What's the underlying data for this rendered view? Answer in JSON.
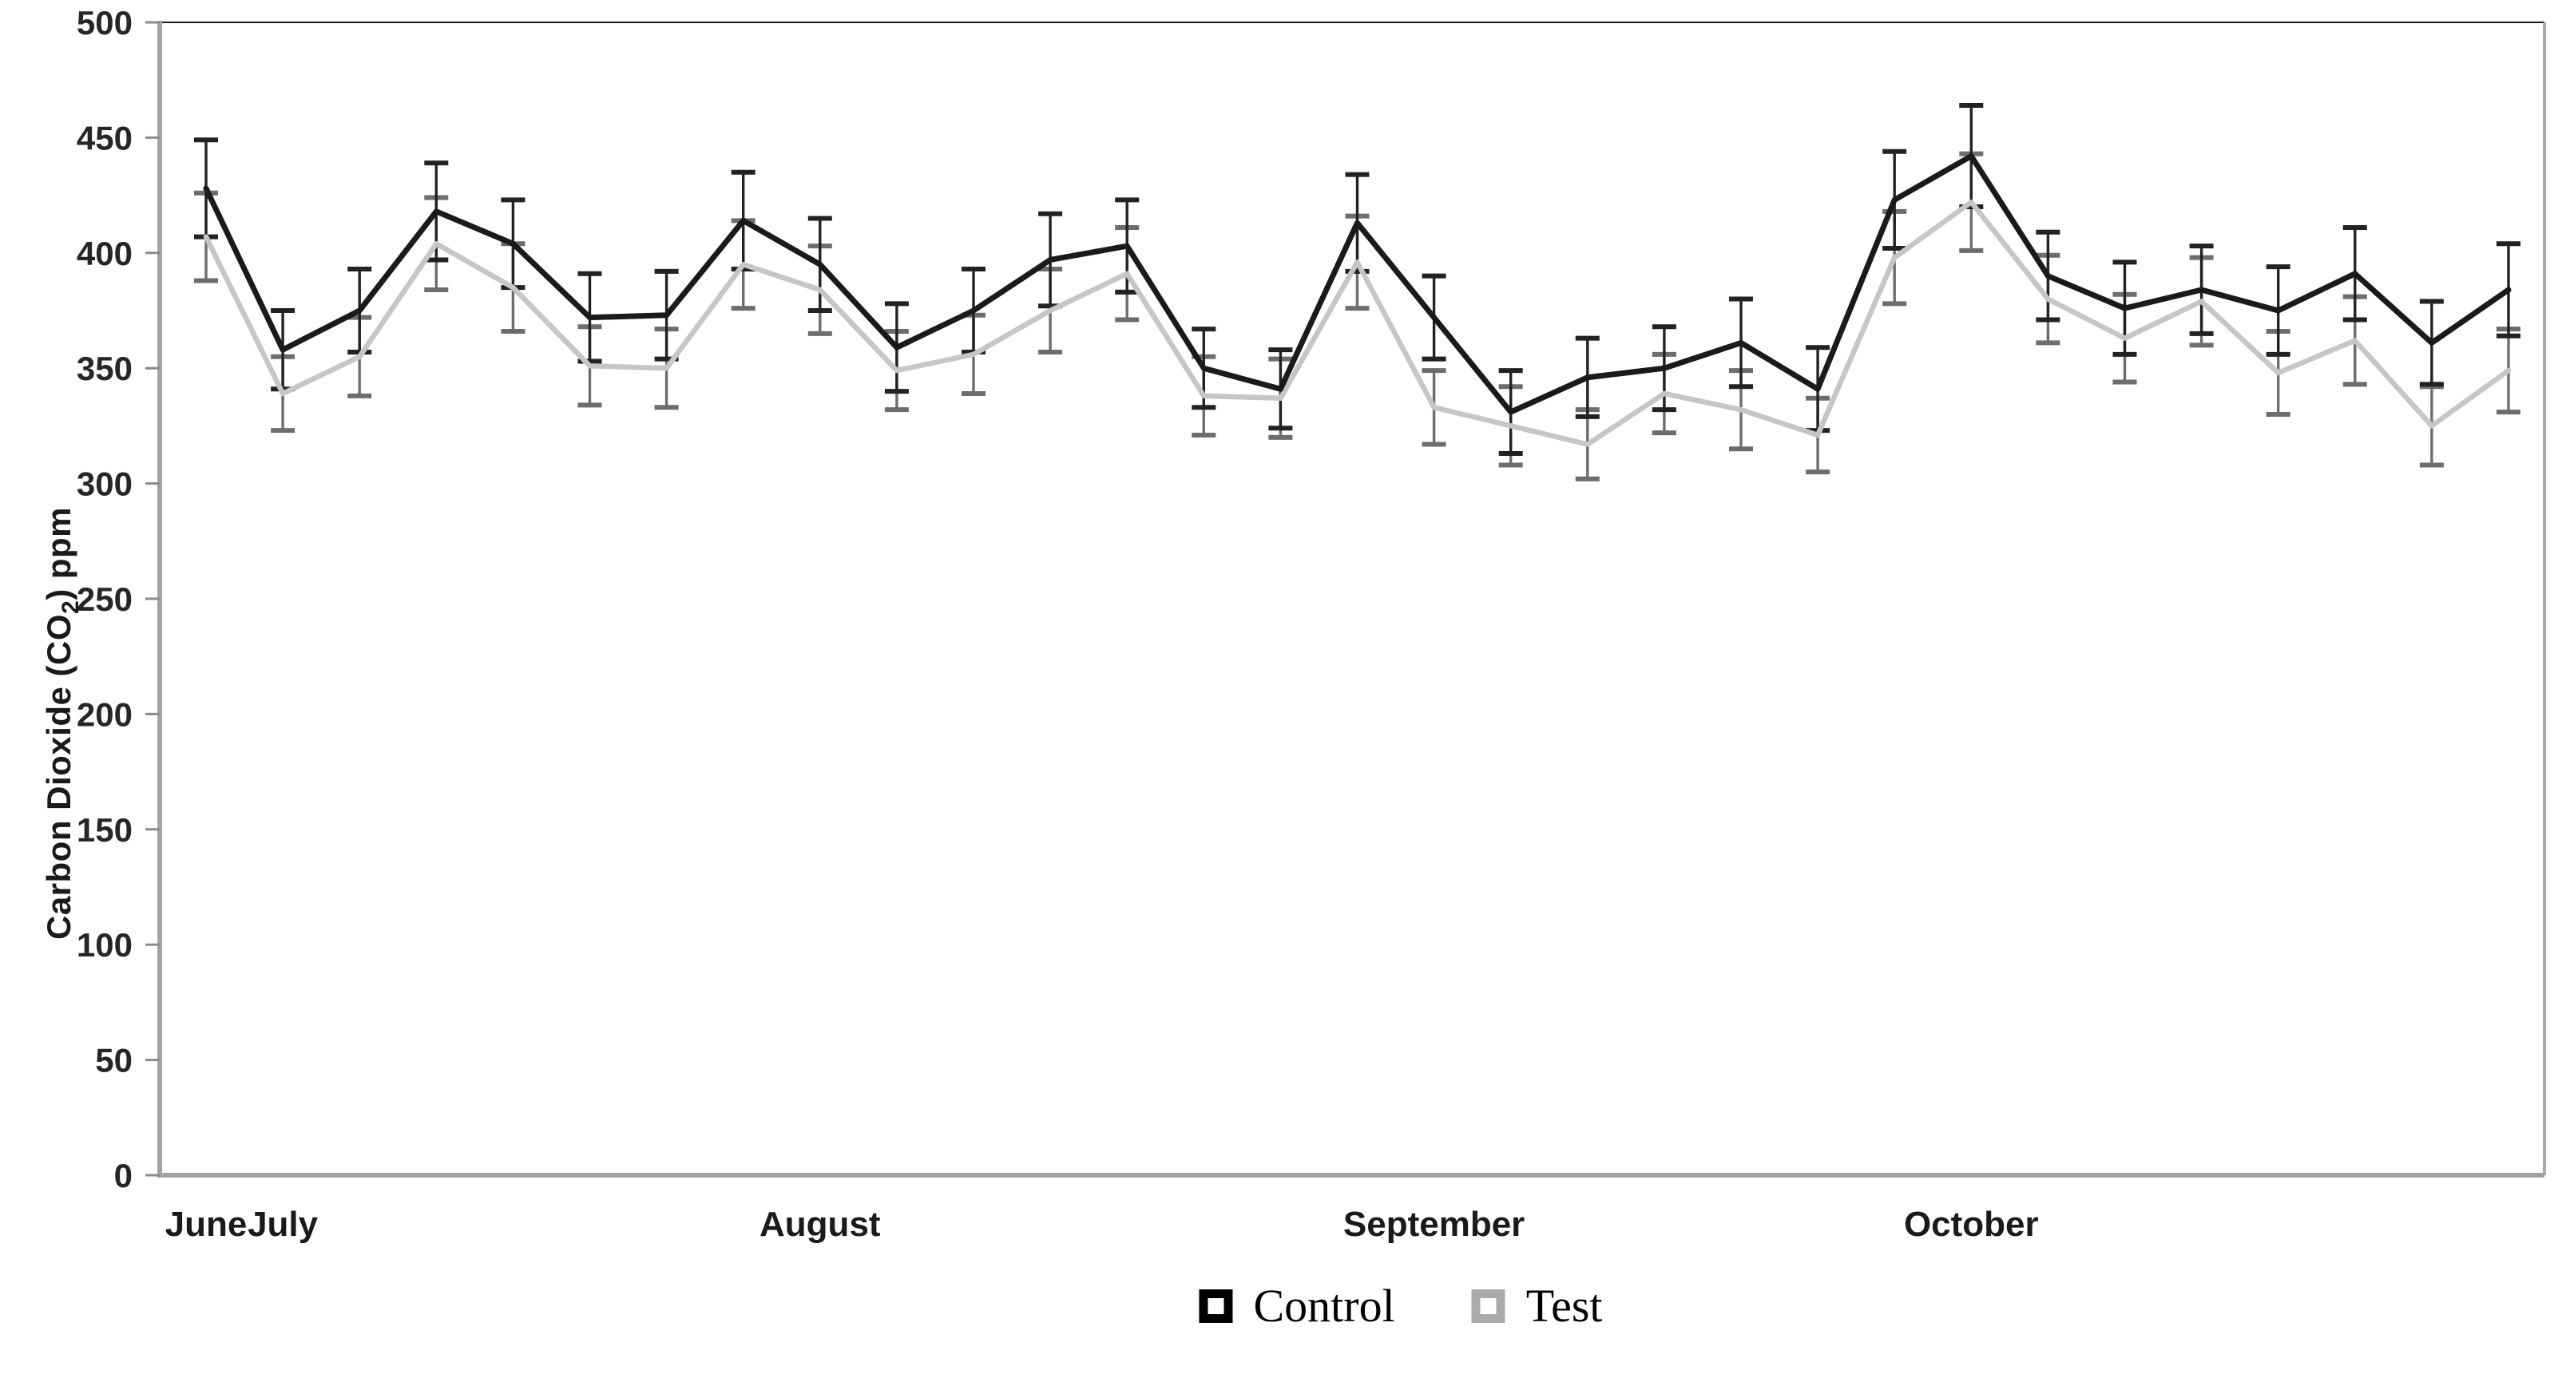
{
  "figure": {
    "background": "#ffffff",
    "ylabel_parts": {
      "pre": "Carbon Dioxide (CO",
      "sub": "2",
      "post": ") ppm"
    }
  },
  "chart_data": {
    "type": "line",
    "title": "",
    "xlabel": "",
    "ylabel": "Carbon Dioxide (CO2) ppm",
    "ylim": [
      0,
      500
    ],
    "yticks": [
      0,
      50,
      100,
      150,
      200,
      250,
      300,
      350,
      400,
      450,
      500
    ],
    "grid": "off",
    "legend_position": "bottom-center",
    "error_bars": true,
    "n_points": 31,
    "x_months": [
      {
        "label": "June",
        "point_index": 0
      },
      {
        "label": "July",
        "point_index": 1
      },
      {
        "label": "August",
        "point_index": 8
      },
      {
        "label": "September",
        "point_index": 16
      },
      {
        "label": "October",
        "point_index": 23
      }
    ],
    "series": [
      {
        "name": "Control",
        "line_color": "#1a1a1a",
        "error_color": "#222222",
        "values": [
          428,
          358,
          375,
          418,
          404,
          372,
          373,
          414,
          395,
          359,
          375,
          397,
          403,
          350,
          341,
          413,
          372,
          331,
          346,
          350,
          361,
          341,
          423,
          442,
          390,
          376,
          384,
          375,
          391,
          361,
          384
        ],
        "errors": [
          21,
          17,
          18,
          21,
          19,
          19,
          19,
          21,
          20,
          19,
          18,
          20,
          20,
          17,
          17,
          21,
          18,
          18,
          17,
          18,
          19,
          18,
          21,
          22,
          19,
          20,
          19,
          19,
          20,
          18,
          20
        ]
      },
      {
        "name": "Test",
        "line_color": "#c6c6c6",
        "error_color": "#6d6d6d",
        "values": [
          407,
          339,
          355,
          404,
          385,
          351,
          350,
          395,
          384,
          349,
          356,
          375,
          391,
          338,
          337,
          396,
          333,
          325,
          317,
          339,
          332,
          321,
          398,
          422,
          380,
          363,
          379,
          348,
          362,
          325,
          349
        ],
        "errors": [
          19,
          16,
          17,
          20,
          19,
          17,
          17,
          19,
          19,
          17,
          17,
          18,
          20,
          17,
          17,
          20,
          16,
          17,
          15,
          17,
          17,
          16,
          20,
          21,
          19,
          19,
          19,
          18,
          19,
          17,
          18
        ]
      }
    ],
    "layout": {
      "plot_left": 200,
      "plot_right": 3186,
      "plot_top": 28,
      "plot_bottom": 1472,
      "first_point_x": 258,
      "last_point_x": 3141,
      "axis_color": "#a3a3a3",
      "top_border_color": "#1a1a1a",
      "right_border_color": "#ababab",
      "tick_color": "#8c8c8c",
      "tick_len": 18,
      "cap_half_width": 15
    }
  }
}
